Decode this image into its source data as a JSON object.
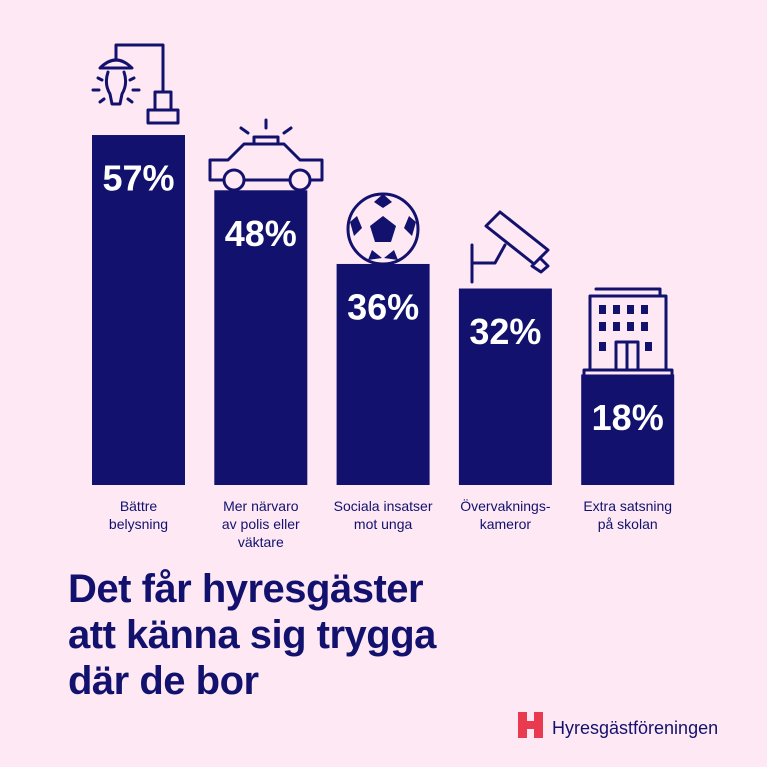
{
  "chart_data": {
    "type": "bar",
    "title": "Det får hyresgäster\natt känna sig trygga\ndär de bor",
    "categories": [
      "Bättre\nbelysning",
      "Mer närvaro\nav polis eller\nväktare",
      "Sociala insatser\nmot unga",
      "Övervaknings-\nkameror",
      "Extra satsning\npå skolan"
    ],
    "values": [
      57,
      48,
      36,
      32,
      18
    ],
    "value_labels": [
      "57%",
      "48%",
      "36%",
      "32%",
      "18%"
    ],
    "color": "#12126e",
    "brand": "Hyresgästföreningen"
  }
}
